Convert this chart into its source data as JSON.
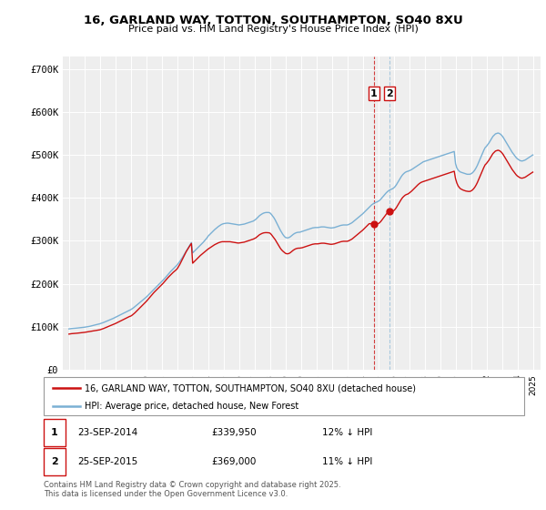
{
  "title_line1": "16, GARLAND WAY, TOTTON, SOUTHAMPTON, SO40 8XU",
  "title_line2": "Price paid vs. HM Land Registry's House Price Index (HPI)",
  "ylim": [
    0,
    730000
  ],
  "yticks": [
    0,
    100000,
    200000,
    300000,
    400000,
    500000,
    600000,
    700000
  ],
  "ytick_labels": [
    "£0",
    "£100K",
    "£200K",
    "£300K",
    "£400K",
    "£500K",
    "£600K",
    "£700K"
  ],
  "legend_label1": "16, GARLAND WAY, TOTTON, SOUTHAMPTON, SO40 8XU (detached house)",
  "legend_label2": "HPI: Average price, detached house, New Forest",
  "marker1_date": "23-SEP-2014",
  "marker1_price": "£339,950",
  "marker1_hpi": "12% ↓ HPI",
  "marker2_date": "25-SEP-2015",
  "marker2_price": "£369,000",
  "marker2_hpi": "11% ↓ HPI",
  "footnote": "Contains HM Land Registry data © Crown copyright and database right 2025.\nThis data is licensed under the Open Government Licence v3.0.",
  "line1_color": "#cc1111",
  "line2_color": "#7ab0d4",
  "vline1_color": "#cc1111",
  "vline2_color": "#7ab0d4",
  "background_color": "#f0f0f0",
  "grid_color": "#ffffff",
  "purchase1_x": 2014.72,
  "purchase2_x": 2015.72,
  "purchase1_y": 339950,
  "purchase2_y": 369000,
  "xmin": 1994.6,
  "xmax": 2025.5,
  "hpi_x": [
    1995.0,
    1995.083,
    1995.167,
    1995.25,
    1995.333,
    1995.417,
    1995.5,
    1995.583,
    1995.667,
    1995.75,
    1995.833,
    1995.917,
    1996.0,
    1996.083,
    1996.167,
    1996.25,
    1996.333,
    1996.417,
    1996.5,
    1996.583,
    1996.667,
    1996.75,
    1996.833,
    1996.917,
    1997.0,
    1997.083,
    1997.167,
    1997.25,
    1997.333,
    1997.417,
    1997.5,
    1997.583,
    1997.667,
    1997.75,
    1997.833,
    1997.917,
    1998.0,
    1998.083,
    1998.167,
    1998.25,
    1998.333,
    1998.417,
    1998.5,
    1998.583,
    1998.667,
    1998.75,
    1998.833,
    1998.917,
    1999.0,
    1999.083,
    1999.167,
    1999.25,
    1999.333,
    1999.417,
    1999.5,
    1999.583,
    1999.667,
    1999.75,
    1999.833,
    1999.917,
    2000.0,
    2000.083,
    2000.167,
    2000.25,
    2000.333,
    2000.417,
    2000.5,
    2000.583,
    2000.667,
    2000.75,
    2000.833,
    2000.917,
    2001.0,
    2001.083,
    2001.167,
    2001.25,
    2001.333,
    2001.417,
    2001.5,
    2001.583,
    2001.667,
    2001.75,
    2001.833,
    2001.917,
    2002.0,
    2002.083,
    2002.167,
    2002.25,
    2002.333,
    2002.417,
    2002.5,
    2002.583,
    2002.667,
    2002.75,
    2002.833,
    2002.917,
    2003.0,
    2003.083,
    2003.167,
    2003.25,
    2003.333,
    2003.417,
    2003.5,
    2003.583,
    2003.667,
    2003.75,
    2003.833,
    2003.917,
    2004.0,
    2004.083,
    2004.167,
    2004.25,
    2004.333,
    2004.417,
    2004.5,
    2004.583,
    2004.667,
    2004.75,
    2004.833,
    2004.917,
    2005.0,
    2005.083,
    2005.167,
    2005.25,
    2005.333,
    2005.417,
    2005.5,
    2005.583,
    2005.667,
    2005.75,
    2005.833,
    2005.917,
    2006.0,
    2006.083,
    2006.167,
    2006.25,
    2006.333,
    2006.417,
    2006.5,
    2006.583,
    2006.667,
    2006.75,
    2006.833,
    2006.917,
    2007.0,
    2007.083,
    2007.167,
    2007.25,
    2007.333,
    2007.417,
    2007.5,
    2007.583,
    2007.667,
    2007.75,
    2007.833,
    2007.917,
    2008.0,
    2008.083,
    2008.167,
    2008.25,
    2008.333,
    2008.417,
    2008.5,
    2008.583,
    2008.667,
    2008.75,
    2008.833,
    2008.917,
    2009.0,
    2009.083,
    2009.167,
    2009.25,
    2009.333,
    2009.417,
    2009.5,
    2009.583,
    2009.667,
    2009.75,
    2009.833,
    2009.917,
    2010.0,
    2010.083,
    2010.167,
    2010.25,
    2010.333,
    2010.417,
    2010.5,
    2010.583,
    2010.667,
    2010.75,
    2010.833,
    2010.917,
    2011.0,
    2011.083,
    2011.167,
    2011.25,
    2011.333,
    2011.417,
    2011.5,
    2011.583,
    2011.667,
    2011.75,
    2011.833,
    2011.917,
    2012.0,
    2012.083,
    2012.167,
    2012.25,
    2012.333,
    2012.417,
    2012.5,
    2012.583,
    2012.667,
    2012.75,
    2012.833,
    2012.917,
    2013.0,
    2013.083,
    2013.167,
    2013.25,
    2013.333,
    2013.417,
    2013.5,
    2013.583,
    2013.667,
    2013.75,
    2013.833,
    2013.917,
    2014.0,
    2014.083,
    2014.167,
    2014.25,
    2014.333,
    2014.417,
    2014.5,
    2014.583,
    2014.667,
    2014.75,
    2014.833,
    2014.917,
    2015.0,
    2015.083,
    2015.167,
    2015.25,
    2015.333,
    2015.417,
    2015.5,
    2015.583,
    2015.667,
    2015.75,
    2015.833,
    2015.917,
    2016.0,
    2016.083,
    2016.167,
    2016.25,
    2016.333,
    2016.417,
    2016.5,
    2016.583,
    2016.667,
    2016.75,
    2016.833,
    2016.917,
    2017.0,
    2017.083,
    2017.167,
    2017.25,
    2017.333,
    2017.417,
    2017.5,
    2017.583,
    2017.667,
    2017.75,
    2017.833,
    2017.917,
    2018.0,
    2018.083,
    2018.167,
    2018.25,
    2018.333,
    2018.417,
    2018.5,
    2018.583,
    2018.667,
    2018.75,
    2018.833,
    2018.917,
    2019.0,
    2019.083,
    2019.167,
    2019.25,
    2019.333,
    2019.417,
    2019.5,
    2019.583,
    2019.667,
    2019.75,
    2019.833,
    2019.917,
    2020.0,
    2020.083,
    2020.167,
    2020.25,
    2020.333,
    2020.417,
    2020.5,
    2020.583,
    2020.667,
    2020.75,
    2020.833,
    2020.917,
    2021.0,
    2021.083,
    2021.167,
    2021.25,
    2021.333,
    2021.417,
    2021.5,
    2021.583,
    2021.667,
    2021.75,
    2021.833,
    2021.917,
    2022.0,
    2022.083,
    2022.167,
    2022.25,
    2022.333,
    2022.417,
    2022.5,
    2022.583,
    2022.667,
    2022.75,
    2022.833,
    2022.917,
    2023.0,
    2023.083,
    2023.167,
    2023.25,
    2023.333,
    2023.417,
    2023.5,
    2023.583,
    2023.667,
    2023.75,
    2023.833,
    2023.917,
    2024.0,
    2024.083,
    2024.167,
    2024.25,
    2024.333,
    2024.417,
    2024.5,
    2024.583,
    2024.667,
    2024.75,
    2024.833,
    2024.917,
    2025.0
  ],
  "hpi_v": [
    95000,
    95500,
    96000,
    96200,
    96500,
    96800,
    97000,
    97300,
    97500,
    97800,
    98000,
    98500,
    99000,
    99500,
    100000,
    100500,
    101000,
    101800,
    102500,
    103200,
    104000,
    104800,
    105500,
    106200,
    107000,
    108000,
    109000,
    110200,
    111500,
    112800,
    114000,
    115300,
    116500,
    117800,
    119000,
    120500,
    122000,
    123500,
    125000,
    126500,
    128000,
    129500,
    131000,
    132500,
    134000,
    135500,
    137000,
    138500,
    140000,
    142000,
    144000,
    146500,
    149000,
    151500,
    154000,
    156500,
    159000,
    161500,
    164000,
    166500,
    169000,
    172000,
    175000,
    178000,
    181000,
    184000,
    187000,
    190000,
    193000,
    196000,
    199000,
    202000,
    205000,
    208000,
    211500,
    215000,
    218500,
    222000,
    225500,
    229000,
    232000,
    235000,
    238000,
    241000,
    244000,
    248000,
    252000,
    256500,
    261000,
    266000,
    271000,
    276000,
    281000,
    286000,
    291000,
    296000,
    272000,
    275000,
    278000,
    281000,
    284000,
    287000,
    290000,
    293000,
    296000,
    299500,
    303000,
    306500,
    311000,
    314000,
    317000,
    320000,
    323000,
    326000,
    328500,
    331000,
    333500,
    335500,
    337500,
    339000,
    340000,
    340500,
    341000,
    341200,
    341000,
    340500,
    340000,
    339500,
    339000,
    338500,
    338000,
    337500,
    337000,
    337500,
    338000,
    338500,
    339000,
    340000,
    341000,
    342000,
    343000,
    344000,
    345000,
    346000,
    348000,
    350000,
    353000,
    356000,
    359000,
    361000,
    363000,
    364500,
    365500,
    366000,
    366000,
    366000,
    365000,
    362000,
    358000,
    354000,
    349000,
    343000,
    337000,
    331000,
    325000,
    320000,
    315000,
    311000,
    308000,
    307000,
    307000,
    308000,
    310000,
    312500,
    315000,
    317000,
    318500,
    319500,
    320000,
    320000,
    321000,
    322000,
    323000,
    324000,
    325000,
    326000,
    327000,
    328000,
    329000,
    330000,
    330500,
    331000,
    331000,
    331000,
    331500,
    332000,
    332500,
    332500,
    332500,
    332000,
    331500,
    331000,
    330500,
    330000,
    330000,
    330500,
    331000,
    332000,
    333000,
    334000,
    335000,
    336000,
    336500,
    337000,
    337000,
    337000,
    337000,
    338000,
    339500,
    341000,
    343000,
    345500,
    348000,
    350500,
    353000,
    355500,
    358000,
    360500,
    363000,
    366000,
    369000,
    372000,
    375000,
    378000,
    381000,
    384000,
    386000,
    388000,
    389500,
    390500,
    392000,
    394000,
    397000,
    400500,
    404000,
    407500,
    411000,
    414000,
    416500,
    418500,
    420000,
    421000,
    423000,
    426000,
    430000,
    435000,
    440000,
    445000,
    450000,
    454000,
    457000,
    459500,
    461000,
    462000,
    463000,
    464500,
    466000,
    468000,
    470000,
    472000,
    474000,
    476000,
    478000,
    480000,
    482000,
    484000,
    485000,
    486000,
    487000,
    488000,
    489000,
    490000,
    491000,
    492000,
    493000,
    494000,
    495000,
    496000,
    497000,
    498000,
    499000,
    500000,
    501000,
    502000,
    503000,
    504000,
    505000,
    506000,
    507000,
    508000,
    480000,
    470000,
    465000,
    462000,
    460000,
    459000,
    458000,
    457000,
    456000,
    455000,
    455000,
    455000,
    456000,
    458000,
    461000,
    465000,
    470000,
    476000,
    483000,
    490000,
    497000,
    504000,
    511000,
    517000,
    520000,
    524000,
    528000,
    533000,
    538000,
    543000,
    546000,
    549000,
    550000,
    551000,
    550000,
    548000,
    545000,
    541000,
    536000,
    531000,
    526000,
    521000,
    516000,
    511000,
    506000,
    502000,
    498000,
    494000,
    491000,
    489000,
    487000,
    486000,
    486000,
    487000,
    488000,
    490000,
    492000,
    494000,
    496000,
    498000,
    500000
  ],
  "price_x": [
    1995.0,
    1995.083,
    1995.167,
    1995.25,
    1995.333,
    1995.417,
    1995.5,
    1995.583,
    1995.667,
    1995.75,
    1995.833,
    1995.917,
    1996.0,
    1996.083,
    1996.167,
    1996.25,
    1996.333,
    1996.417,
    1996.5,
    1996.583,
    1996.667,
    1996.75,
    1996.833,
    1996.917,
    1997.0,
    1997.083,
    1997.167,
    1997.25,
    1997.333,
    1997.417,
    1997.5,
    1997.583,
    1997.667,
    1997.75,
    1997.833,
    1997.917,
    1998.0,
    1998.083,
    1998.167,
    1998.25,
    1998.333,
    1998.417,
    1998.5,
    1998.583,
    1998.667,
    1998.75,
    1998.833,
    1998.917,
    1999.0,
    1999.083,
    1999.167,
    1999.25,
    1999.333,
    1999.417,
    1999.5,
    1999.583,
    1999.667,
    1999.75,
    1999.833,
    1999.917,
    2000.0,
    2000.083,
    2000.167,
    2000.25,
    2000.333,
    2000.417,
    2000.5,
    2000.583,
    2000.667,
    2000.75,
    2000.833,
    2000.917,
    2001.0,
    2001.083,
    2001.167,
    2001.25,
    2001.333,
    2001.417,
    2001.5,
    2001.583,
    2001.667,
    2001.75,
    2001.833,
    2001.917,
    2002.0,
    2002.083,
    2002.167,
    2002.25,
    2002.333,
    2002.417,
    2002.5,
    2002.583,
    2002.667,
    2002.75,
    2002.833,
    2002.917,
    2003.0,
    2003.083,
    2003.167,
    2003.25,
    2003.333,
    2003.417,
    2003.5,
    2003.583,
    2003.667,
    2003.75,
    2003.833,
    2003.917,
    2004.0,
    2004.083,
    2004.167,
    2004.25,
    2004.333,
    2004.417,
    2004.5,
    2004.583,
    2004.667,
    2004.75,
    2004.833,
    2004.917,
    2005.0,
    2005.083,
    2005.167,
    2005.25,
    2005.333,
    2005.417,
    2005.5,
    2005.583,
    2005.667,
    2005.75,
    2005.833,
    2005.917,
    2006.0,
    2006.083,
    2006.167,
    2006.25,
    2006.333,
    2006.417,
    2006.5,
    2006.583,
    2006.667,
    2006.75,
    2006.833,
    2006.917,
    2007.0,
    2007.083,
    2007.167,
    2007.25,
    2007.333,
    2007.417,
    2007.5,
    2007.583,
    2007.667,
    2007.75,
    2007.833,
    2007.917,
    2008.0,
    2008.083,
    2008.167,
    2008.25,
    2008.333,
    2008.417,
    2008.5,
    2008.583,
    2008.667,
    2008.75,
    2008.833,
    2008.917,
    2009.0,
    2009.083,
    2009.167,
    2009.25,
    2009.333,
    2009.417,
    2009.5,
    2009.583,
    2009.667,
    2009.75,
    2009.833,
    2009.917,
    2010.0,
    2010.083,
    2010.167,
    2010.25,
    2010.333,
    2010.417,
    2010.5,
    2010.583,
    2010.667,
    2010.75,
    2010.833,
    2010.917,
    2011.0,
    2011.083,
    2011.167,
    2011.25,
    2011.333,
    2011.417,
    2011.5,
    2011.583,
    2011.667,
    2011.75,
    2011.833,
    2011.917,
    2012.0,
    2012.083,
    2012.167,
    2012.25,
    2012.333,
    2012.417,
    2012.5,
    2012.583,
    2012.667,
    2012.75,
    2012.833,
    2012.917,
    2013.0,
    2013.083,
    2013.167,
    2013.25,
    2013.333,
    2013.417,
    2013.5,
    2013.583,
    2013.667,
    2013.75,
    2013.833,
    2013.917,
    2014.0,
    2014.083,
    2014.167,
    2014.25,
    2014.333,
    2014.417,
    2014.5,
    2014.583,
    2014.667,
    2014.72,
    2015.0,
    2015.083,
    2015.167,
    2015.25,
    2015.333,
    2015.417,
    2015.5,
    2015.583,
    2015.667,
    2015.72,
    2016.0,
    2016.083,
    2016.167,
    2016.25,
    2016.333,
    2016.417,
    2016.5,
    2016.583,
    2016.667,
    2016.75,
    2016.833,
    2016.917,
    2017.0,
    2017.083,
    2017.167,
    2017.25,
    2017.333,
    2017.417,
    2017.5,
    2017.583,
    2017.667,
    2017.75,
    2017.833,
    2017.917,
    2018.0,
    2018.083,
    2018.167,
    2018.25,
    2018.333,
    2018.417,
    2018.5,
    2018.583,
    2018.667,
    2018.75,
    2018.833,
    2018.917,
    2019.0,
    2019.083,
    2019.167,
    2019.25,
    2019.333,
    2019.417,
    2019.5,
    2019.583,
    2019.667,
    2019.75,
    2019.833,
    2019.917,
    2020.0,
    2020.083,
    2020.167,
    2020.25,
    2020.333,
    2020.417,
    2020.5,
    2020.583,
    2020.667,
    2020.75,
    2020.833,
    2020.917,
    2021.0,
    2021.083,
    2021.167,
    2021.25,
    2021.333,
    2021.417,
    2021.5,
    2021.583,
    2021.667,
    2021.75,
    2021.833,
    2021.917,
    2022.0,
    2022.083,
    2022.167,
    2022.25,
    2022.333,
    2022.417,
    2022.5,
    2022.583,
    2022.667,
    2022.75,
    2022.833,
    2022.917,
    2023.0,
    2023.083,
    2023.167,
    2023.25,
    2023.333,
    2023.417,
    2023.5,
    2023.583,
    2023.667,
    2023.75,
    2023.833,
    2023.917,
    2024.0,
    2024.083,
    2024.167,
    2024.25,
    2024.333,
    2024.417,
    2024.5,
    2024.583,
    2024.667,
    2024.75,
    2024.833,
    2024.917,
    2025.0
  ],
  "price_v": [
    83000,
    83500,
    84000,
    84200,
    84500,
    84800,
    85000,
    85300,
    85500,
    85800,
    86000,
    86500,
    87000,
    87500,
    88000,
    88500,
    89000,
    89500,
    90000,
    90500,
    91000,
    91500,
    92000,
    92500,
    93000,
    94000,
    95000,
    96200,
    97500,
    98800,
    100000,
    101200,
    102500,
    103800,
    105000,
    106200,
    107500,
    109000,
    110500,
    112000,
    113500,
    115000,
    116500,
    118000,
    119500,
    121000,
    122500,
    124000,
    125000,
    127000,
    129500,
    132000,
    135000,
    138000,
    141000,
    144000,
    147000,
    150000,
    153000,
    156000,
    159000,
    162500,
    166000,
    169500,
    173000,
    176500,
    180000,
    183000,
    186000,
    189000,
    192000,
    195000,
    198000,
    201000,
    204500,
    208000,
    211500,
    215000,
    218000,
    221000,
    224000,
    227000,
    229500,
    232000,
    235000,
    240000,
    245000,
    251000,
    257000,
    263000,
    269000,
    275000,
    280000,
    285000,
    289500,
    294000,
    248000,
    251000,
    254000,
    257000,
    260000,
    263000,
    266000,
    268500,
    271000,
    273500,
    276000,
    278500,
    281000,
    283000,
    285000,
    287000,
    289000,
    291000,
    292500,
    294000,
    295500,
    296500,
    297500,
    298000,
    298000,
    298000,
    298000,
    298000,
    298000,
    298000,
    297500,
    297000,
    296500,
    296000,
    295500,
    295000,
    295000,
    295500,
    296000,
    296500,
    297000,
    298000,
    299000,
    300000,
    301000,
    302000,
    303000,
    304000,
    305500,
    307000,
    309500,
    312000,
    314500,
    316000,
    317500,
    318500,
    319000,
    319200,
    319000,
    318800,
    318000,
    315000,
    311000,
    307000,
    303000,
    298000,
    293000,
    288000,
    283000,
    279000,
    276000,
    273500,
    271000,
    270000,
    270000,
    271000,
    273000,
    275500,
    278000,
    280000,
    281500,
    282500,
    283000,
    283000,
    283500,
    284000,
    285000,
    286000,
    287000,
    288000,
    289000,
    290000,
    291000,
    292000,
    292500,
    293000,
    293000,
    293000,
    293500,
    294000,
    294500,
    294500,
    294500,
    294000,
    293500,
    293000,
    292500,
    292000,
    292000,
    292500,
    293000,
    294000,
    295000,
    296000,
    297000,
    298000,
    298500,
    299000,
    299000,
    299000,
    299000,
    300000,
    301500,
    303000,
    305000,
    307500,
    310000,
    312500,
    315000,
    317500,
    320000,
    322500,
    325000,
    328000,
    331000,
    334000,
    337000,
    339950,
    339950,
    339950,
    339950,
    339950,
    339950,
    342000,
    345000,
    349000,
    353000,
    357000,
    361000,
    365000,
    369000,
    369000,
    370000,
    373000,
    377000,
    382000,
    387000,
    392000,
    397000,
    401000,
    404000,
    406500,
    408000,
    409000,
    411000,
    413500,
    416000,
    419000,
    422000,
    425000,
    428000,
    431000,
    433500,
    435500,
    437000,
    438000,
    439000,
    440000,
    441000,
    442000,
    443000,
    444000,
    445000,
    446000,
    447000,
    448000,
    449000,
    450000,
    451000,
    452000,
    453000,
    454000,
    455000,
    456000,
    457000,
    458000,
    459000,
    460000,
    461000,
    462000,
    445000,
    435000,
    428000,
    424000,
    421000,
    419500,
    418000,
    417000,
    416000,
    415500,
    415000,
    415000,
    416000,
    418000,
    421000,
    425000,
    430000,
    436000,
    443000,
    450000,
    457000,
    464000,
    471000,
    477000,
    480000,
    484000,
    488000,
    493000,
    498000,
    503000,
    506000,
    509000,
    510000,
    511000,
    510000,
    508000,
    505000,
    501000,
    496000,
    491000,
    486000,
    481000,
    476000,
    471000,
    466000,
    462000,
    458000,
    454000,
    451000,
    449000,
    447000,
    446000,
    446000,
    447000,
    448000,
    450000,
    452000,
    454000,
    456000,
    458000,
    460000
  ]
}
